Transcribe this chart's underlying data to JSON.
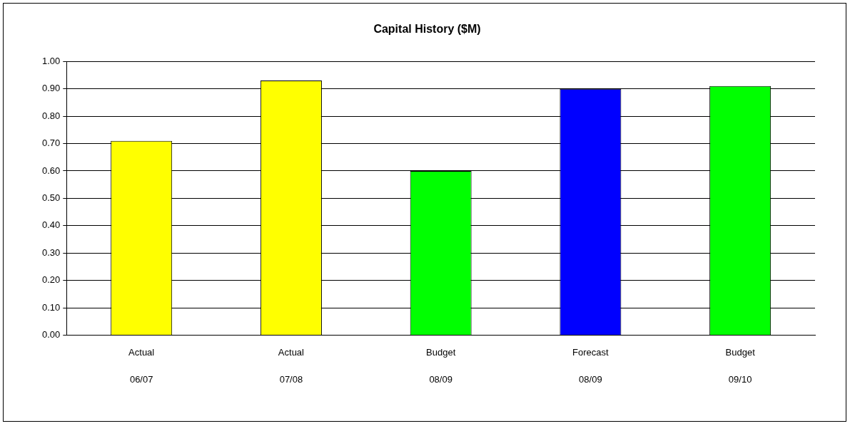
{
  "chart_data": {
    "type": "bar",
    "title": "Capital History ($M)",
    "categories": [
      "Actual\n06/07",
      "Actual\n07/08",
      "Budget\n08/09",
      "Forecast\n08/09",
      "Budget\n09/10"
    ],
    "values": [
      0.71,
      0.93,
      0.6,
      0.9,
      0.91
    ],
    "colors": [
      "#ffff00",
      "#ffff00",
      "#00ff00",
      "#0000ff",
      "#00ff00"
    ],
    "ylim": [
      0,
      1
    ],
    "yticks": [
      {
        "value": 0,
        "label": "0.00"
      },
      {
        "value": 0.1,
        "label": "0.10"
      },
      {
        "value": 0.2,
        "label": "0.20"
      },
      {
        "value": 0.3,
        "label": "0.30"
      },
      {
        "value": 0.4,
        "label": "0.40"
      },
      {
        "value": 0.5,
        "label": "0.50"
      },
      {
        "value": 0.6,
        "label": "0.60"
      },
      {
        "value": 0.7,
        "label": "0.70"
      },
      {
        "value": 0.8,
        "label": "0.80"
      },
      {
        "value": 0.9,
        "label": "0.90"
      },
      {
        "value": 1,
        "label": "1.00"
      }
    ],
    "grid": "y"
  }
}
